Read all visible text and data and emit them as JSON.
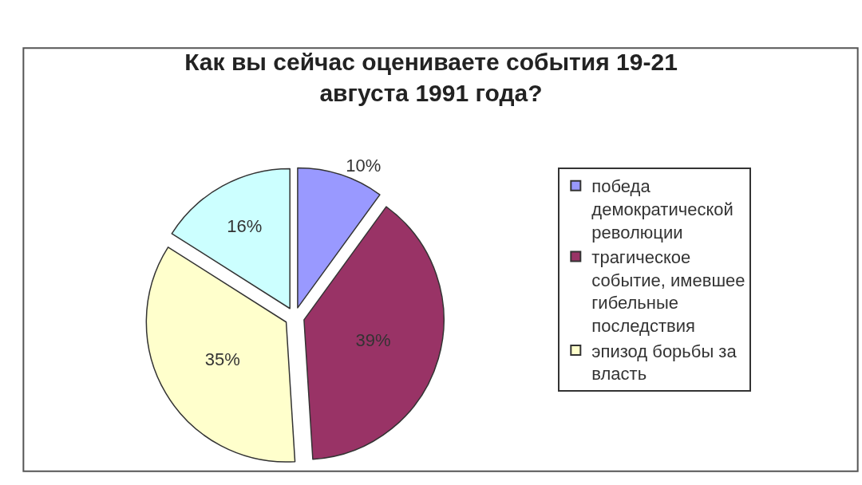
{
  "chart_data": {
    "type": "pie",
    "title": "Как вы сейчас оцениваете события 19-21 августа 1991 года?",
    "categories": [
      "победа демократической революции",
      "трагическое событие, имевшее гибельные последствия",
      "эпизод борьбы за власть",
      null
    ],
    "values": [
      10,
      39,
      35,
      16
    ],
    "value_labels": [
      "10%",
      "39%",
      "35%",
      "16%"
    ],
    "colors": [
      "#9999ff",
      "#993366",
      "#ffffcc",
      "#ccffff"
    ],
    "legend": "right"
  }
}
